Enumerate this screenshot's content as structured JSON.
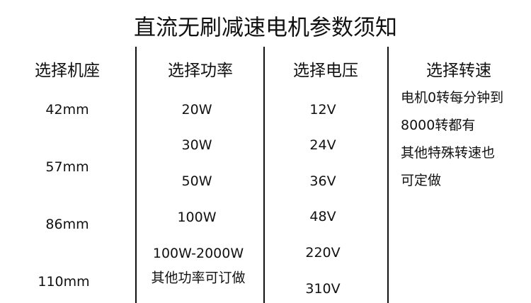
{
  "title": "直流无刷减速电机参数须知",
  "columns": [
    {
      "header": "选择机座",
      "items": [
        "42mm",
        "57mm",
        "86mm",
        "110mm"
      ]
    },
    {
      "header": "选择功率",
      "items": [
        "20W",
        "30W",
        "50W",
        "100W",
        "100W-2000W",
        "其他功率可订做"
      ]
    },
    {
      "header": "选择电压",
      "items": [
        "12V",
        "24V",
        "36V",
        "48V",
        "220V",
        "310V"
      ]
    },
    {
      "header": "选择转速",
      "lines": [
        "电机0转每分钟到",
        "8000转都有",
        "其他特殊转速也",
        "可定做"
      ]
    }
  ]
}
